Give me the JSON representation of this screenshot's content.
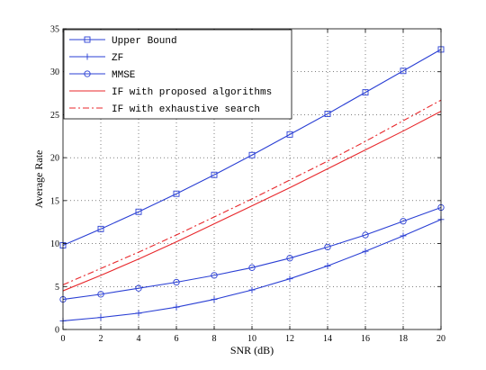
{
  "chart_data": {
    "type": "line",
    "xlabel": "SNR (dB)",
    "ylabel": "Average Rate",
    "xlim": [
      0,
      20
    ],
    "ylim": [
      0,
      35
    ],
    "xticks": [
      "0",
      "2",
      "4",
      "6",
      "8",
      "10",
      "12",
      "14",
      "16",
      "18",
      "20"
    ],
    "yticks": [
      "0",
      "5",
      "10",
      "15",
      "20",
      "25",
      "30",
      "35"
    ],
    "grid": true,
    "legend_position": "top-left",
    "x": [
      0,
      2,
      4,
      6,
      8,
      10,
      12,
      14,
      16,
      18,
      20
    ],
    "series": [
      {
        "name": "Upper Bound",
        "values": [
          9.8,
          11.7,
          13.7,
          15.8,
          18.0,
          20.3,
          22.7,
          25.1,
          27.6,
          30.1,
          32.6
        ],
        "color": "#2a3fd4",
        "dash": "solid",
        "marker": "square"
      },
      {
        "name": "ZF",
        "values": [
          1.0,
          1.4,
          1.9,
          2.6,
          3.5,
          4.6,
          5.9,
          7.4,
          9.1,
          10.9,
          12.8
        ],
        "color": "#2a3fd4",
        "dash": "solid",
        "marker": "plus"
      },
      {
        "name": "MMSE",
        "values": [
          3.5,
          4.1,
          4.8,
          5.5,
          6.3,
          7.2,
          8.3,
          9.6,
          11.0,
          12.6,
          14.2
        ],
        "color": "#2a3fd4",
        "dash": "solid",
        "marker": "circle"
      },
      {
        "name": "IF with proposed algorithms",
        "values": [
          4.5,
          6.3,
          8.2,
          10.2,
          12.3,
          14.4,
          16.5,
          18.7,
          20.9,
          23.1,
          25.4
        ],
        "color": "#e8272b",
        "dash": "solid",
        "marker": "none"
      },
      {
        "name": "IF with exhaustive search",
        "values": [
          5.2,
          7.1,
          9.0,
          11.0,
          13.1,
          15.2,
          17.4,
          19.6,
          21.9,
          24.3,
          26.7
        ],
        "color": "#e8272b",
        "dash": "dashdot",
        "marker": "none"
      }
    ]
  }
}
